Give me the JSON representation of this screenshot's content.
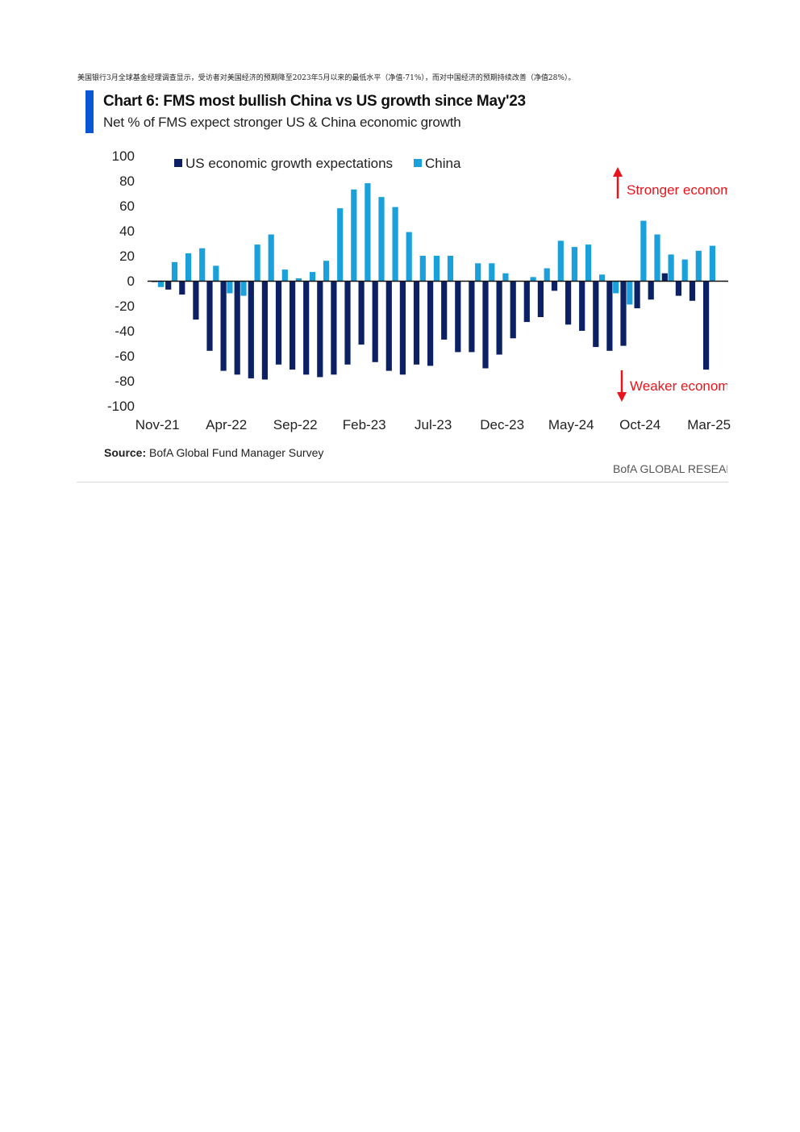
{
  "intro_text": "美国银行3月全球基金经理调查显示，受访者对美国经济的预期降至2023年5月以来的最低水平（净值-71%），而对中国经济的预期持续改善（净值28%）。",
  "source": {
    "label": "Source:",
    "text": "BofA Global Fund Manager Survey"
  },
  "footer": "BofA GLOBAL RESEARCH",
  "annotations": {
    "stronger": "Stronger economy",
    "weaker": "Weaker economy"
  },
  "colors": {
    "us": "#0c2164",
    "china": "#1aa1dc",
    "accent_bar": "#0a57d6",
    "arrow": "#e8141c"
  },
  "chart_data": {
    "type": "bar",
    "title": "Chart 6: FMS most bullish China vs US growth since May'23",
    "subtitle": "Net % of FMS expect stronger US & China economic growth",
    "xlabel": "",
    "ylabel": "",
    "ylim": [
      -100,
      100
    ],
    "yticks": [
      "100",
      "80",
      "60",
      "40",
      "20",
      "0",
      "-20",
      "-40",
      "-60",
      "-80",
      "-100"
    ],
    "tick_labels": [
      "Nov-21",
      "Apr-22",
      "Sep-22",
      "Feb-23",
      "Jul-23",
      "Dec-23",
      "May-24",
      "Oct-24",
      "Mar-25"
    ],
    "legend_position": "top-left",
    "grid": false,
    "categories": [
      "Nov-21",
      "Dec-21",
      "Jan-22",
      "Feb-22",
      "Mar-22",
      "Apr-22",
      "May-22",
      "Jun-22",
      "Jul-22",
      "Aug-22",
      "Sep-22",
      "Oct-22",
      "Nov-22",
      "Dec-22",
      "Jan-23",
      "Feb-23",
      "Mar-23",
      "Apr-23",
      "May-23",
      "Jun-23",
      "Jul-23",
      "Aug-23",
      "Sep-23",
      "Oct-23",
      "Nov-23",
      "Dec-23",
      "Jan-24",
      "Feb-24",
      "Mar-24",
      "Apr-24",
      "May-24",
      "Jun-24",
      "Jul-24",
      "Aug-24",
      "Sep-24",
      "Oct-24",
      "Nov-24",
      "Dec-24",
      "Jan-25",
      "Feb-25",
      "Mar-25"
    ],
    "series": [
      {
        "name": "US economic growth expectations",
        "values": [
          -1,
          -7,
          -11,
          -31,
          -56,
          -72,
          -75,
          -78,
          -79,
          -67,
          -71,
          -75,
          -77,
          -75,
          -67,
          -51,
          -65,
          -72,
          -75,
          -67,
          -68,
          -47,
          -57,
          -57,
          -70,
          -59,
          -46,
          -33,
          -29,
          -8,
          -35,
          -40,
          -53,
          -56,
          -52,
          -22,
          -15,
          6,
          -12,
          -16,
          -71
        ]
      },
      {
        "name": "China",
        "values": [
          -5,
          15,
          22,
          26,
          12,
          -10,
          -12,
          29,
          37,
          9,
          2,
          7,
          16,
          58,
          73,
          78,
          67,
          59,
          39,
          20,
          20,
          20,
          0,
          14,
          14,
          6,
          0,
          3,
          10,
          32,
          27,
          29,
          5,
          -10,
          -19,
          48,
          37,
          21,
          17,
          24,
          28
        ]
      }
    ]
  }
}
